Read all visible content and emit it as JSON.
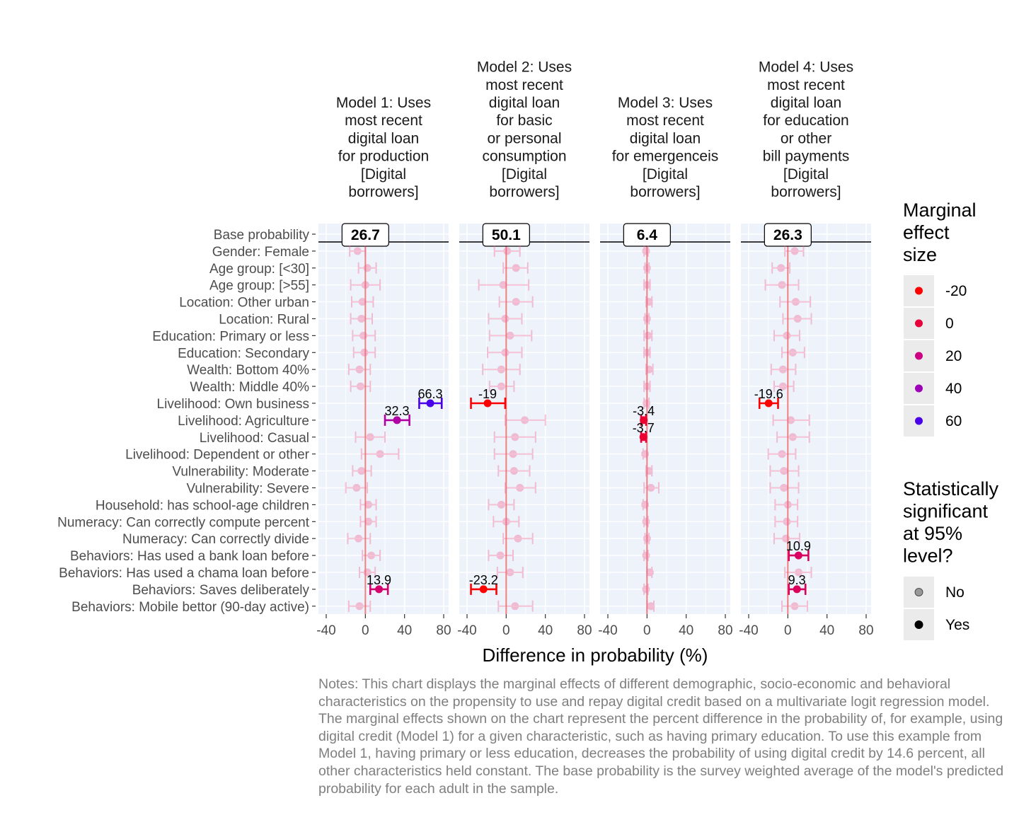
{
  "chart_data": {
    "type": "forest",
    "xlabel": "Difference in probability (%)",
    "xlim": [
      -40,
      80
    ],
    "xticks": [
      -40,
      0,
      40,
      80
    ],
    "grid": true,
    "rows": [
      "Base probability",
      "Gender: Female",
      "Age group: [<30]",
      "Age group: [>55]",
      "Location: Other urban",
      "Location: Rural",
      "Education: Primary or less",
      "Education: Secondary",
      "Wealth: Bottom 40%",
      "Wealth: Middle 40%",
      "Livelihood: Own business",
      "Livelihood: Agriculture",
      "Livelihood: Casual",
      "Livelihood: Dependent or other",
      "Vulnerability: Moderate",
      "Vulnerability: Severe",
      "Household: has school-age children",
      "Numeracy: Can correctly compute percent",
      "Numeracy: Can correctly divide",
      "Behaviors: Has used a bank loan before",
      "Behaviors: Has used a chama loan before",
      "Behaviors: Saves deliberately",
      "Behaviors: Mobile bettor (90-day active)"
    ],
    "panels": [
      {
        "title_lines": [
          "Model 1: Uses",
          "most recent",
          "digital loan",
          "for production",
          "[Digital",
          "borrowers]"
        ],
        "base_probability": "26.7",
        "estimates": [
          {
            "row": "Gender: Female",
            "est": -8,
            "lo": -16,
            "hi": 0,
            "sig": false
          },
          {
            "row": "Age group: [<30]",
            "est": 2,
            "lo": -7,
            "hi": 11,
            "sig": false
          },
          {
            "row": "Age group: [>55]",
            "est": 0,
            "lo": -15,
            "hi": 15,
            "sig": false
          },
          {
            "row": "Location: Other urban",
            "est": -3,
            "lo": -14,
            "hi": 8,
            "sig": false
          },
          {
            "row": "Location: Rural",
            "est": -4,
            "lo": -15,
            "hi": 7,
            "sig": false
          },
          {
            "row": "Education: Primary or less",
            "est": -2,
            "lo": -13,
            "hi": 10,
            "sig": false
          },
          {
            "row": "Education: Secondary",
            "est": -1,
            "lo": -12,
            "hi": 10,
            "sig": false
          },
          {
            "row": "Wealth: Bottom 40%",
            "est": -6,
            "lo": -17,
            "hi": 5,
            "sig": false
          },
          {
            "row": "Wealth: Middle 40%",
            "est": -5,
            "lo": -15,
            "hi": 5,
            "sig": false
          },
          {
            "row": "Livelihood: Own business",
            "est": 66.3,
            "lo": 55,
            "hi": 78,
            "sig": true,
            "label": "66.3"
          },
          {
            "row": "Livelihood: Agriculture",
            "est": 32.3,
            "lo": 20,
            "hi": 45,
            "sig": true,
            "label": "32.3"
          },
          {
            "row": "Livelihood: Casual",
            "est": 5,
            "lo": -10,
            "hi": 20,
            "sig": false
          },
          {
            "row": "Livelihood: Dependent or other",
            "est": 15,
            "lo": -4,
            "hi": 34,
            "sig": false
          },
          {
            "row": "Vulnerability: Moderate",
            "est": -4,
            "lo": -13,
            "hi": 6,
            "sig": false
          },
          {
            "row": "Vulnerability: Severe",
            "est": -9,
            "lo": -20,
            "hi": 2,
            "sig": false
          },
          {
            "row": "Household: has school-age children",
            "est": 3,
            "lo": -5,
            "hi": 11,
            "sig": false
          },
          {
            "row": "Numeracy: Can correctly compute percent",
            "est": 3,
            "lo": -5,
            "hi": 11,
            "sig": false
          },
          {
            "row": "Numeracy: Can correctly divide",
            "est": -7,
            "lo": -18,
            "hi": 5,
            "sig": false
          },
          {
            "row": "Behaviors: Has used a bank loan before",
            "est": 6,
            "lo": -3,
            "hi": 15,
            "sig": false
          },
          {
            "row": "Behaviors: Has used a chama loan before",
            "est": 2,
            "lo": -6,
            "hi": 10,
            "sig": false
          },
          {
            "row": "Behaviors: Saves deliberately",
            "est": 13.9,
            "lo": 5,
            "hi": 23,
            "sig": true,
            "label": "13.9"
          },
          {
            "row": "Behaviors: Mobile bettor (90-day active)",
            "est": -6,
            "lo": -17,
            "hi": 5,
            "sig": false
          }
        ]
      },
      {
        "title_lines": [
          "Model 2: Uses",
          "most recent",
          "digital loan",
          "for basic",
          "or personal",
          "consumption",
          "[Digital",
          "borrowers]"
        ],
        "base_probability": "50.1",
        "estimates": [
          {
            "row": "Gender: Female",
            "est": 1,
            "lo": -12,
            "hi": 14,
            "sig": false
          },
          {
            "row": "Age group: [<30]",
            "est": 10,
            "lo": -3,
            "hi": 22,
            "sig": false
          },
          {
            "row": "Age group: [>55]",
            "est": -3,
            "lo": -28,
            "hi": 23,
            "sig": false
          },
          {
            "row": "Location: Other urban",
            "est": 10,
            "lo": -7,
            "hi": 27,
            "sig": false
          },
          {
            "row": "Location: Rural",
            "est": -1,
            "lo": -18,
            "hi": 16,
            "sig": false
          },
          {
            "row": "Education: Primary or less",
            "est": 4,
            "lo": -17,
            "hi": 26,
            "sig": false
          },
          {
            "row": "Education: Secondary",
            "est": -1,
            "lo": -19,
            "hi": 16,
            "sig": false
          },
          {
            "row": "Wealth: Bottom 40%",
            "est": -5,
            "lo": -24,
            "hi": 14,
            "sig": false
          },
          {
            "row": "Wealth: Middle 40%",
            "est": -5,
            "lo": -17,
            "hi": 8,
            "sig": false
          },
          {
            "row": "Livelihood: Own business",
            "est": -19,
            "lo": -36,
            "hi": -1,
            "sig": true,
            "label": "-19"
          },
          {
            "row": "Livelihood: Agriculture",
            "est": 19,
            "lo": -1,
            "hi": 40,
            "sig": false
          },
          {
            "row": "Livelihood: Casual",
            "est": 9,
            "lo": -12,
            "hi": 30,
            "sig": false
          },
          {
            "row": "Livelihood: Dependent or other",
            "est": 7,
            "lo": -12,
            "hi": 27,
            "sig": false
          },
          {
            "row": "Vulnerability: Moderate",
            "est": 8,
            "lo": -8,
            "hi": 24,
            "sig": false
          },
          {
            "row": "Vulnerability: Severe",
            "est": 14,
            "lo": -1,
            "hi": 30,
            "sig": false
          },
          {
            "row": "Household: has school-age children",
            "est": -5,
            "lo": -18,
            "hi": 8,
            "sig": false
          },
          {
            "row": "Numeracy: Can correctly compute percent",
            "est": 0,
            "lo": -13,
            "hi": 13,
            "sig": false
          },
          {
            "row": "Numeracy: Can correctly divide",
            "est": 12,
            "lo": -3,
            "hi": 27,
            "sig": false
          },
          {
            "row": "Behaviors: Has used a bank loan before",
            "est": -6,
            "lo": -18,
            "hi": 7,
            "sig": false
          },
          {
            "row": "Behaviors: Has used a chama loan before",
            "est": 4,
            "lo": -9,
            "hi": 17,
            "sig": false
          },
          {
            "row": "Behaviors: Saves deliberately",
            "est": -23.2,
            "lo": -36,
            "hi": -10,
            "sig": true,
            "label": "-23.2"
          },
          {
            "row": "Behaviors: Mobile bettor (90-day active)",
            "est": 9,
            "lo": -8,
            "hi": 27,
            "sig": false
          }
        ]
      },
      {
        "title_lines": [
          "Model 3: Uses",
          "most recent",
          "digital loan",
          "for emergenceis",
          "[Digital",
          "borrowers]"
        ],
        "base_probability": "6.4",
        "estimates": [
          {
            "row": "Gender: Female",
            "est": -1,
            "lo": -3,
            "hi": 1,
            "sig": false
          },
          {
            "row": "Age group: [<30]",
            "est": 0,
            "lo": -2,
            "hi": 2,
            "sig": false
          },
          {
            "row": "Age group: [>55]",
            "est": 0,
            "lo": -3,
            "hi": 3,
            "sig": false
          },
          {
            "row": "Location: Other urban",
            "est": 2,
            "lo": -1,
            "hi": 5,
            "sig": false
          },
          {
            "row": "Location: Rural",
            "est": 0,
            "lo": -2,
            "hi": 2,
            "sig": false
          },
          {
            "row": "Education: Primary or less",
            "est": 1,
            "lo": -3,
            "hi": 5,
            "sig": false
          },
          {
            "row": "Education: Secondary",
            "est": 0,
            "lo": -3,
            "hi": 3,
            "sig": false
          },
          {
            "row": "Wealth: Bottom 40%",
            "est": 2,
            "lo": -1,
            "hi": 6,
            "sig": false
          },
          {
            "row": "Wealth: Middle 40%",
            "est": 0,
            "lo": -3,
            "hi": 3,
            "sig": false
          },
          {
            "row": "Livelihood: Own business",
            "est": -0.5,
            "lo": -3,
            "hi": 2,
            "sig": false
          },
          {
            "row": "Livelihood: Agriculture",
            "est": -3.4,
            "lo": -6,
            "hi": -1,
            "sig": true,
            "label": "-3.4"
          },
          {
            "row": "Livelihood: Casual",
            "est": -3.7,
            "lo": -6,
            "hi": -1,
            "sig": true,
            "label": "-3.7"
          },
          {
            "row": "Livelihood: Dependent or other",
            "est": -2,
            "lo": -4,
            "hi": 0,
            "sig": false
          },
          {
            "row": "Vulnerability: Moderate",
            "est": 2,
            "lo": -1,
            "hi": 5,
            "sig": false
          },
          {
            "row": "Vulnerability: Severe",
            "est": 4,
            "lo": -3,
            "hi": 12,
            "sig": false
          },
          {
            "row": "Household: has school-age children",
            "est": -2,
            "lo": -4,
            "hi": 0,
            "sig": false
          },
          {
            "row": "Numeracy: Can correctly compute percent",
            "est": -1,
            "lo": -3,
            "hi": 1,
            "sig": false
          },
          {
            "row": "Numeracy: Can correctly divide",
            "est": 0,
            "lo": -2,
            "hi": 2,
            "sig": false
          },
          {
            "row": "Behaviors: Has used a bank loan before",
            "est": -1,
            "lo": -3,
            "hi": 1,
            "sig": false
          },
          {
            "row": "Behaviors: Has used a chama loan before",
            "est": 3,
            "lo": 0,
            "hi": 5,
            "sig": false
          },
          {
            "row": "Behaviors: Saves deliberately",
            "est": -1,
            "lo": -3,
            "hi": 1,
            "sig": false
          },
          {
            "row": "Behaviors: Mobile bettor (90-day active)",
            "est": 4,
            "lo": 0,
            "hi": 7,
            "sig": false
          }
        ]
      },
      {
        "title_lines": [
          "Model 4: Uses",
          "most recent",
          "digital loan",
          "for education",
          "or other",
          "bill payments",
          "[Digital",
          "borrowers]"
        ],
        "base_probability": "26.3",
        "estimates": [
          {
            "row": "Gender: Female",
            "est": 7,
            "lo": -3,
            "hi": 16,
            "sig": false
          },
          {
            "row": "Age group: [<30]",
            "est": -7,
            "lo": -16,
            "hi": 2,
            "sig": false
          },
          {
            "row": "Age group: [>55]",
            "est": -6,
            "lo": -23,
            "hi": 11,
            "sig": false
          },
          {
            "row": "Location: Other urban",
            "est": 8,
            "lo": -8,
            "hi": 23,
            "sig": false
          },
          {
            "row": "Location: Rural",
            "est": 10,
            "lo": -5,
            "hi": 24,
            "sig": false
          },
          {
            "row": "Education: Primary or less",
            "est": -1,
            "lo": -14,
            "hi": 12,
            "sig": false
          },
          {
            "row": "Education: Secondary",
            "est": 5,
            "lo": -6,
            "hi": 17,
            "sig": false
          },
          {
            "row": "Wealth: Bottom 40%",
            "est": -5,
            "lo": -17,
            "hi": 8,
            "sig": false
          },
          {
            "row": "Wealth: Middle 40%",
            "est": -5,
            "lo": -14,
            "hi": 6,
            "sig": false
          },
          {
            "row": "Livelihood: Own business",
            "est": -19.6,
            "lo": -29,
            "hi": -10,
            "sig": true,
            "label": "-19.6"
          },
          {
            "row": "Livelihood: Agriculture",
            "est": 3,
            "lo": -15,
            "hi": 22,
            "sig": false
          },
          {
            "row": "Livelihood: Casual",
            "est": 5,
            "lo": -11,
            "hi": 22,
            "sig": false
          },
          {
            "row": "Livelihood: Dependent or other",
            "est": -6,
            "lo": -20,
            "hi": 8,
            "sig": false
          },
          {
            "row": "Vulnerability: Moderate",
            "est": -4,
            "lo": -18,
            "hi": 11,
            "sig": false
          },
          {
            "row": "Vulnerability: Severe",
            "est": -4,
            "lo": -18,
            "hi": 11,
            "sig": false
          },
          {
            "row": "Household: has school-age children",
            "est": 0,
            "lo": -13,
            "hi": 10,
            "sig": false
          },
          {
            "row": "Numeracy: Can correctly compute percent",
            "est": -1,
            "lo": -13,
            "hi": 10,
            "sig": false
          },
          {
            "row": "Numeracy: Can correctly divide",
            "est": -2,
            "lo": -14,
            "hi": 12,
            "sig": false
          },
          {
            "row": "Behaviors: Has used a bank loan before",
            "est": 10.9,
            "lo": 1,
            "hi": 21,
            "sig": true,
            "label": "10.9"
          },
          {
            "row": "Behaviors: Has used a chama loan before",
            "est": 11,
            "lo": -3,
            "hi": 24,
            "sig": false
          },
          {
            "row": "Behaviors: Saves deliberately",
            "est": 9.3,
            "lo": 1,
            "hi": 18,
            "sig": true,
            "label": "9.3"
          },
          {
            "row": "Behaviors: Mobile bettor (90-day active)",
            "est": 7,
            "lo": -6,
            "hi": 20,
            "sig": false
          }
        ]
      }
    ],
    "legend_color": {
      "title_lines": [
        "Marginal",
        "effect",
        "size"
      ],
      "items": [
        {
          "label": "-20",
          "color": "#ff0000"
        },
        {
          "label": "0",
          "color": "#e8003c"
        },
        {
          "label": "20",
          "color": "#cc0080"
        },
        {
          "label": "40",
          "color": "#9e00b8"
        },
        {
          "label": "60",
          "color": "#4a00e8"
        }
      ]
    },
    "legend_sig": {
      "title_lines": [
        "Statistically",
        "significant",
        "at 95%",
        "level?"
      ],
      "items": [
        {
          "label": "No",
          "alpha": 0.35
        },
        {
          "label": "Yes",
          "alpha": 1
        }
      ]
    },
    "colors": {
      "panel_bg": "#eef3fb",
      "grid": "#ffffff",
      "zero_line": "#f08080",
      "nonsig": "#ee6a96"
    }
  },
  "notes": "Notes: This chart displays the marginal effects of different demographic, socio-economic and behavioral characteristics on the propensity to use and repay digital credit based on a multivariate logit regression model. The marginal effects shown on the chart represent the percent difference in the probability of, for example, using digital credit (Model 1) for a given characteristic, such as having primary education. To use this example from Model 1, having primary or less education, decreases the probability of using digital credit by 14.6 percent, all other characteristics held constant. The base probability is the survey weighted average of the model's predicted probability for each adult in the sample."
}
